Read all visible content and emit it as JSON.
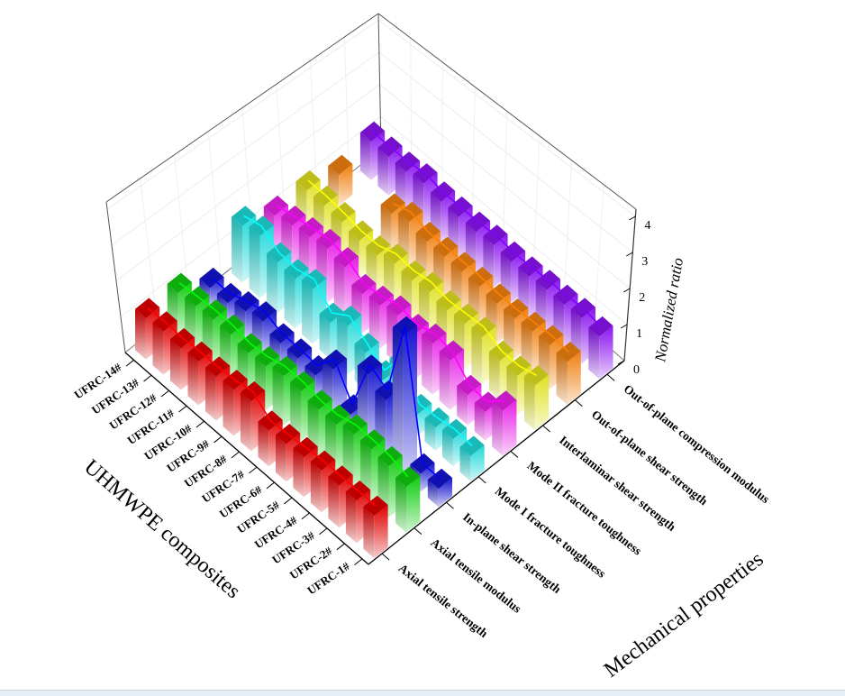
{
  "chart_data": {
    "type": "bar3d",
    "categories": [
      "UFRC-1#",
      "UFRC-2#",
      "UFRC-3#",
      "UFRC-4#",
      "UFRC-5#",
      "UFRC-6#",
      "UFRC-7#",
      "UFRC-8#",
      "UFRC-9#",
      "UFRC-10#",
      "UFRC-11#",
      "UFRC-12#",
      "UFRC-13#",
      "UFRC-14#"
    ],
    "series": [
      {
        "name": "Axial tensile strength",
        "color": "#e00000",
        "line": "#ff0000",
        "values": [
          1.15,
          1.15,
          1.15,
          1.15,
          1.1,
          1.05,
          1.0,
          1.4,
          1.3,
          1.25,
          1.25,
          1.2,
          1.25,
          1.2
        ]
      },
      {
        "name": "Axial tensile modulus",
        "color": "#10cc10",
        "line": "#00ff00",
        "values": [
          1.25,
          1.4,
          1.45,
          1.45,
          1.3,
          1.3,
          1.4,
          1.4,
          1.25,
          1.2,
          1.3,
          1.3,
          1.25,
          1.2
        ]
      },
      {
        "name": "In-plane shear strength",
        "color": "#1414d0",
        "line": "#0000ff",
        "values": [
          0.5,
          0.5,
          3.9,
          1.7,
          2.0,
          0.45,
          1.3,
          0.7,
          0.75,
          0.75,
          0.95,
          0.8,
          0.6,
          0.6
        ]
      },
      {
        "name": "Mode I fracture toughness",
        "color": "#20d8d8",
        "line": "#00ffff",
        "values": [
          0.7,
          0.75,
          0.65,
          0.6,
          1.5,
          0.7,
          1.05,
          1.4,
          1.05,
          1.6,
          1.45,
          1.5,
          1.85,
          1.7
        ]
      },
      {
        "name": "Mode II fracture toughness",
        "color": "#e820e8",
        "line": "#ff00ff",
        "values": [
          1.25,
          0.8,
          0.85,
          1.4,
          1.45,
          1.3,
          1.4,
          1.25,
          1.15,
          1.5,
          1.6,
          1.5,
          1.4,
          1.25
        ]
      },
      {
        "name": "Interlaminar shear strength",
        "color": "#e0e020",
        "line": "#ffff00",
        "values": [
          1.25,
          1.1,
          1.1,
          1.35,
          1.3,
          1.25,
          1.35,
          1.25,
          1.3,
          1.1,
          1.1,
          1.2,
          1.25,
          1.25
        ]
      },
      {
        "name": "Out-of-plane shear strength",
        "color": "#f08010",
        "line": "#ff8000",
        "values": [
          1.2,
          1.25,
          1.2,
          1.15,
          1.15,
          1.2,
          1.2,
          1.2,
          1.2,
          1.35,
          1.15,
          null,
          null,
          0.95
        ]
      },
      {
        "name": "Out-of-plane compression modulus",
        "color": "#8a14f0",
        "line": "#8000ff",
        "values": [
          1.2,
          1.3,
          1.25,
          1.25,
          1.2,
          1.2,
          1.25,
          1.2,
          1.2,
          1.2,
          1.3,
          1.2,
          1.2,
          1.2
        ]
      }
    ],
    "xlabel": "UHMWPE composites",
    "ylabel": "Mechanical properties",
    "zlabel": "Normalized ratio",
    "zlim": [
      0,
      4.2
    ],
    "z_ticks": [
      "0",
      "1",
      "2",
      "3",
      "4"
    ],
    "grid": true,
    "lines_connect_bar_tops": true
  }
}
